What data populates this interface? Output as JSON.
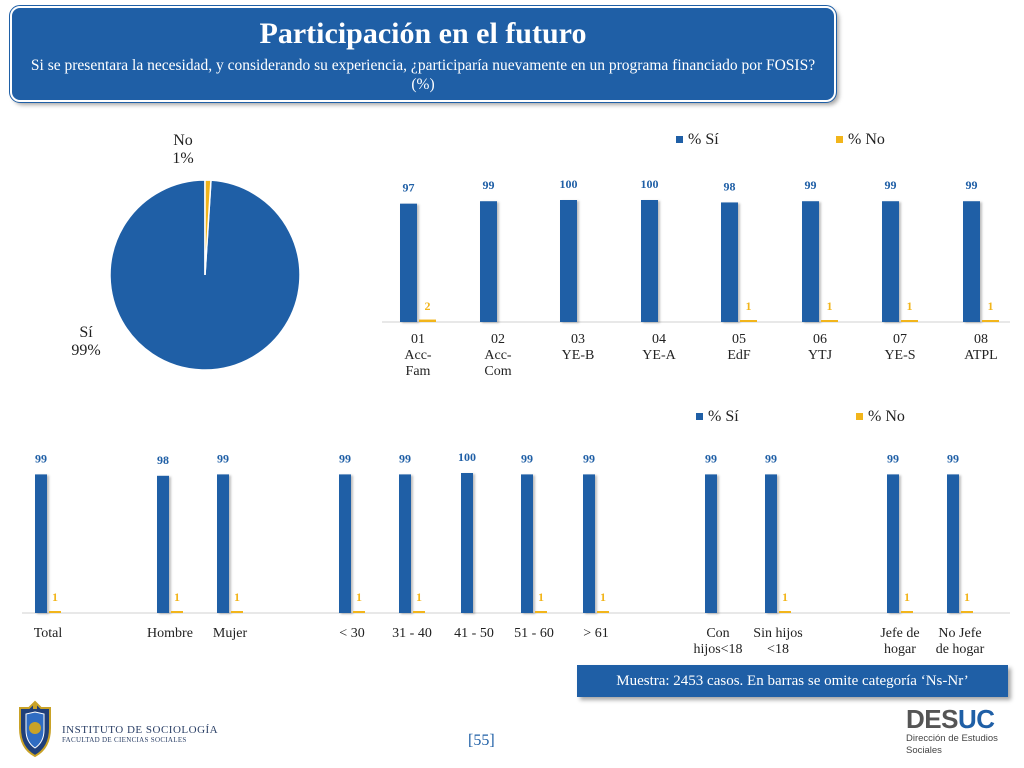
{
  "header": {
    "title": "Participación en el futuro",
    "subtitle": "Si se presentara la necesidad, y considerando su experiencia, ¿participaría nuevamente en un programa financiado por FOSIS? (%)"
  },
  "colors": {
    "si": "#1f5fa6",
    "no": "#f2b51b",
    "header_bg": "#1f5fa6"
  },
  "chart_data": [
    {
      "type": "pie",
      "labels": [
        "Sí",
        "No"
      ],
      "values": [
        99,
        1
      ],
      "data_labels": [
        "Sí\n99%",
        "No\n1%"
      ]
    },
    {
      "type": "bar",
      "categories": [
        "01\nAcc-\nFam",
        "02\nAcc-\nCom",
        "03\nYE-B",
        "04\nYE-A",
        "05\nEdF",
        "06\nYTJ",
        "07\nYE-S",
        "08\nATPL"
      ],
      "series": [
        {
          "name": "% Sí",
          "values": [
            97,
            99,
            100,
            100,
            98,
            99,
            99,
            99
          ]
        },
        {
          "name": "% No",
          "values": [
            2,
            0,
            0,
            0,
            1,
            1,
            1,
            1
          ],
          "labels": [
            "2",
            "",
            "",
            "",
            "1",
            "1",
            "1",
            "1"
          ]
        }
      ],
      "ylim": [
        0,
        100
      ],
      "legend": "top-right"
    },
    {
      "type": "bar",
      "categories": [
        "Total",
        "Hombre",
        "Mujer",
        "< 30",
        "31 - 40",
        "41 - 50",
        "51 - 60",
        "> 61",
        "Con\nhijos<18",
        "Sin hijos\n<18",
        "Jefe de\nhogar",
        "No Jefe\nde hogar"
      ],
      "series": [
        {
          "name": "% Sí",
          "values": [
            99,
            98,
            99,
            99,
            99,
            100,
            99,
            99,
            99,
            99,
            99,
            99
          ]
        },
        {
          "name": "% No",
          "values": [
            1,
            1,
            1,
            1,
            1,
            0,
            1,
            1,
            0,
            1,
            1,
            1
          ],
          "labels": [
            "1",
            "1",
            "1",
            "1",
            "1",
            "",
            "1",
            "1",
            "",
            "1",
            "1",
            "1"
          ]
        }
      ],
      "ylim": [
        0,
        100
      ],
      "legend": "top-right"
    }
  ],
  "footer": {
    "note": "Muestra: 2453 casos. En barras se omite categoría ‘Ns-Nr’",
    "page": "[55]",
    "institute_line1": "INSTITUTO DE SOCIOLOGÍA",
    "institute_line2": "FACULTAD DE CIENCIAS SOCIALES",
    "desuc_brand_a": "DES",
    "desuc_brand_b": "UC",
    "desuc_sub1": "Dirección de Estudios",
    "desuc_sub2": "Sociales"
  }
}
